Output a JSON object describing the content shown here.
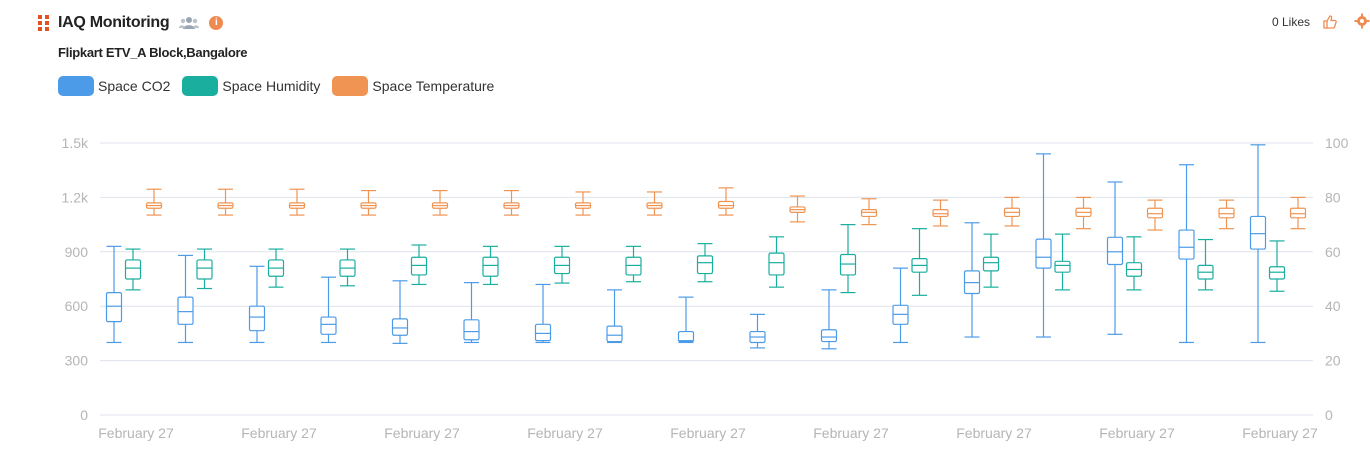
{
  "header": {
    "title": "IAQ Monitoring",
    "subtitle": "Flipkart ETV_A Block,Bangalore",
    "likes": "0 Likes",
    "icons": [
      "grid-icon",
      "users-icon",
      "info-icon",
      "thumbs-up-icon",
      "gear-icon"
    ]
  },
  "colors": {
    "co2": "#4c9be8",
    "humidity": "#1aae9f",
    "temperature": "#ef9452",
    "grid": "#dfe3ec",
    "tick": "#b5b5b5",
    "info": "#ef8a50"
  },
  "chart_data": {
    "type": "boxplot",
    "legend_position": "top-left",
    "grid": true,
    "x_tick_labels": [
      "February 27",
      "February 27",
      "February 27",
      "February 27",
      "February 27",
      "February 27",
      "February 27",
      "February 27",
      "February 27"
    ],
    "y_left": {
      "range": [
        0,
        1500
      ],
      "ticks": [
        0,
        300,
        600,
        900,
        1200,
        1500
      ],
      "tick_labels": [
        "0",
        "300",
        "600",
        "900",
        "1.2k",
        "1.5k"
      ]
    },
    "y_right": {
      "range": [
        0,
        100
      ],
      "ticks": [
        0,
        20,
        40,
        60,
        80,
        100
      ],
      "tick_labels": [
        "0",
        "20",
        "40",
        "60",
        "80",
        "100"
      ]
    },
    "series": [
      {
        "name": "Space CO2",
        "axis": "left",
        "color_key": "co2",
        "boxes": [
          {
            "min": 400,
            "q1": 515,
            "median": 600,
            "q3": 675,
            "max": 930
          },
          {
            "min": 400,
            "q1": 500,
            "median": 570,
            "q3": 650,
            "max": 880
          },
          {
            "min": 400,
            "q1": 465,
            "median": 540,
            "q3": 600,
            "max": 820
          },
          {
            "min": 400,
            "q1": 445,
            "median": 500,
            "q3": 540,
            "max": 760
          },
          {
            "min": 395,
            "q1": 440,
            "median": 480,
            "q3": 530,
            "max": 740
          },
          {
            "min": 400,
            "q1": 415,
            "median": 460,
            "q3": 525,
            "max": 730
          },
          {
            "min": 400,
            "q1": 410,
            "median": 450,
            "q3": 500,
            "max": 720
          },
          {
            "min": 400,
            "q1": 405,
            "median": 440,
            "q3": 490,
            "max": 690
          },
          {
            "min": 400,
            "q1": 405,
            "median": 410,
            "q3": 460,
            "max": 650
          },
          {
            "min": 370,
            "q1": 400,
            "median": 430,
            "q3": 460,
            "max": 555
          },
          {
            "min": 365,
            "q1": 405,
            "median": 430,
            "q3": 470,
            "max": 690
          },
          {
            "min": 400,
            "q1": 500,
            "median": 555,
            "q3": 605,
            "max": 810
          },
          {
            "min": 430,
            "q1": 670,
            "median": 730,
            "q3": 795,
            "max": 1060
          },
          {
            "min": 430,
            "q1": 810,
            "median": 870,
            "q3": 970,
            "max": 1440
          },
          {
            "min": 445,
            "q1": 830,
            "median": 900,
            "q3": 980,
            "max": 1285
          },
          {
            "min": 400,
            "q1": 860,
            "median": 925,
            "q3": 1020,
            "max": 1380
          },
          {
            "min": 400,
            "q1": 915,
            "median": 1000,
            "q3": 1095,
            "max": 1490
          }
        ]
      },
      {
        "name": "Space Humidity",
        "axis": "right",
        "color_key": "humidity",
        "boxes": [
          {
            "min": 46,
            "q1": 50,
            "median": 54,
            "q3": 57,
            "max": 61
          },
          {
            "min": 46.5,
            "q1": 50,
            "median": 54,
            "q3": 57,
            "max": 61
          },
          {
            "min": 47,
            "q1": 51,
            "median": 54,
            "q3": 57,
            "max": 61
          },
          {
            "min": 47.5,
            "q1": 51,
            "median": 54,
            "q3": 57,
            "max": 61
          },
          {
            "min": 48,
            "q1": 51.5,
            "median": 55,
            "q3": 58,
            "max": 62.5
          },
          {
            "min": 48,
            "q1": 51,
            "median": 55,
            "q3": 58,
            "max": 62
          },
          {
            "min": 48.5,
            "q1": 52,
            "median": 55,
            "q3": 58,
            "max": 62
          },
          {
            "min": 49,
            "q1": 51.5,
            "median": 55,
            "q3": 58,
            "max": 62
          },
          {
            "min": 49,
            "q1": 52,
            "median": 56,
            "q3": 58.5,
            "max": 63
          },
          {
            "min": 47,
            "q1": 51.5,
            "median": 56,
            "q3": 59.5,
            "max": 65.5
          },
          {
            "min": 45,
            "q1": 51.5,
            "median": 55.5,
            "q3": 59,
            "max": 70
          },
          {
            "min": 44,
            "q1": 52.5,
            "median": 55,
            "q3": 57.5,
            "max": 68.5
          },
          {
            "min": 47,
            "q1": 53,
            "median": 56,
            "q3": 58,
            "max": 66.5
          },
          {
            "min": 46,
            "q1": 52.5,
            "median": 55,
            "q3": 56.5,
            "max": 66.5
          },
          {
            "min": 46,
            "q1": 51,
            "median": 53.5,
            "q3": 56,
            "max": 65.5
          },
          {
            "min": 46,
            "q1": 50,
            "median": 52.5,
            "q3": 55,
            "max": 64.5
          },
          {
            "min": 45.5,
            "q1": 50,
            "median": 52.5,
            "q3": 54.5,
            "max": 64
          }
        ]
      },
      {
        "name": "Space Temperature",
        "axis": "right",
        "color_key": "temperature",
        "boxes": [
          {
            "min": 73.5,
            "q1": 76,
            "median": 77,
            "q3": 78,
            "max": 83
          },
          {
            "min": 73.5,
            "q1": 76,
            "median": 77,
            "q3": 78,
            "max": 83
          },
          {
            "min": 73.5,
            "q1": 76,
            "median": 77,
            "q3": 78,
            "max": 83
          },
          {
            "min": 73.5,
            "q1": 76,
            "median": 77,
            "q3": 78,
            "max": 82.5
          },
          {
            "min": 73.5,
            "q1": 76,
            "median": 77,
            "q3": 78,
            "max": 82.5
          },
          {
            "min": 73.5,
            "q1": 76,
            "median": 77,
            "q3": 78,
            "max": 82.5
          },
          {
            "min": 73.5,
            "q1": 76,
            "median": 77,
            "q3": 78,
            "max": 82
          },
          {
            "min": 73.5,
            "q1": 76,
            "median": 77,
            "q3": 78,
            "max": 82
          },
          {
            "min": 73.5,
            "q1": 76,
            "median": 77,
            "q3": 78.5,
            "max": 83.5
          },
          {
            "min": 71,
            "q1": 74.5,
            "median": 75.5,
            "q3": 76.5,
            "max": 80.5
          },
          {
            "min": 70,
            "q1": 73,
            "median": 74.5,
            "q3": 75.5,
            "max": 79.5
          },
          {
            "min": 69.5,
            "q1": 73,
            "median": 74,
            "q3": 75.5,
            "max": 79
          },
          {
            "min": 69.5,
            "q1": 73,
            "median": 74.5,
            "q3": 76,
            "max": 80
          },
          {
            "min": 68.5,
            "q1": 73,
            "median": 74.5,
            "q3": 76,
            "max": 80
          },
          {
            "min": 68,
            "q1": 72.5,
            "median": 74,
            "q3": 76,
            "max": 79
          },
          {
            "min": 68.5,
            "q1": 72.5,
            "median": 74,
            "q3": 76,
            "max": 79
          },
          {
            "min": 68.5,
            "q1": 72.5,
            "median": 74,
            "q3": 76,
            "max": 80
          }
        ]
      }
    ]
  }
}
